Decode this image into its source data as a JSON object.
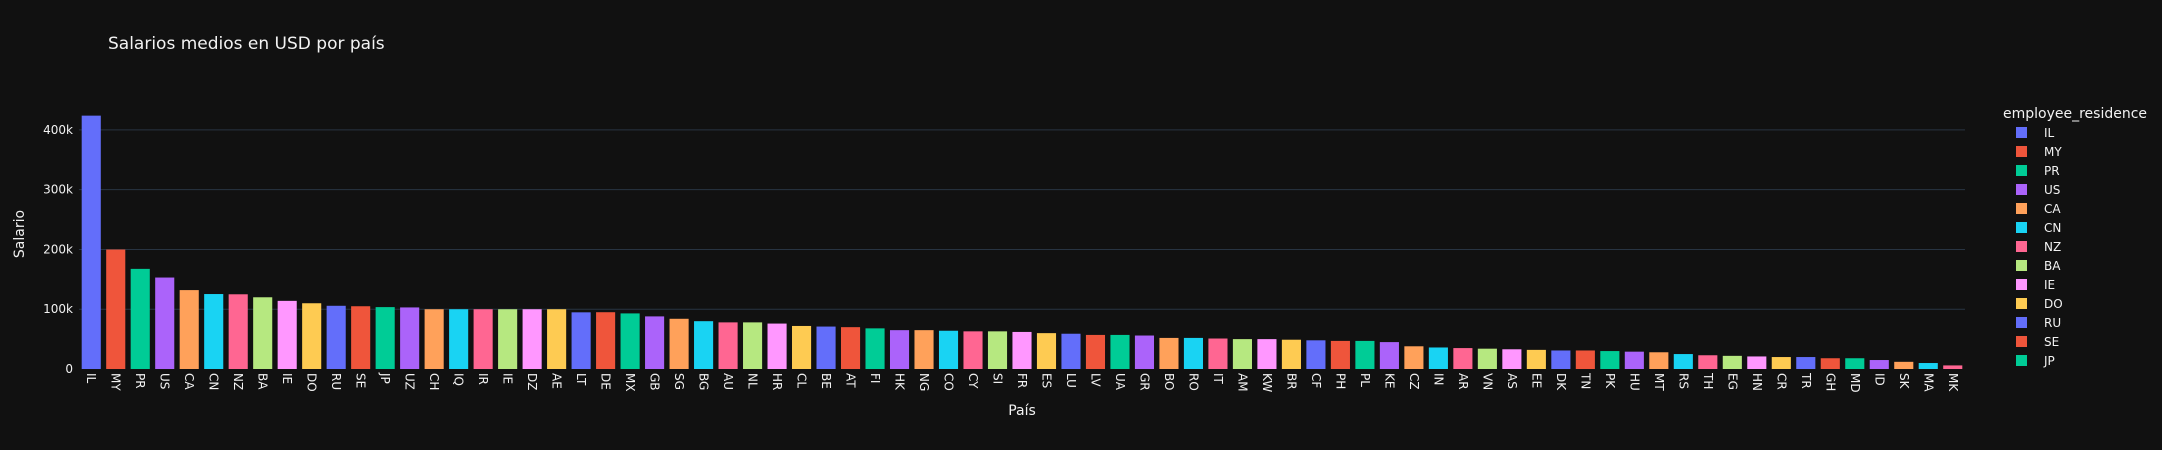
{
  "chart_data": {
    "type": "bar",
    "title": "Salarios medios en USD por país",
    "xlabel": "País",
    "ylabel": "Salario",
    "ylim": [
      0,
      450000
    ],
    "yticks": [
      0,
      100000,
      200000,
      300000,
      400000
    ],
    "ytick_labels": [
      "0",
      "100k",
      "200k",
      "300k",
      "400k"
    ],
    "grid": true,
    "legend_title": "employee_residence",
    "legend_position": "right",
    "palette": [
      "#636efa",
      "#EF553B",
      "#00cc96",
      "#ab63fa",
      "#FFA15A",
      "#19d3f3",
      "#FF6692",
      "#B6E880",
      "#FF97FF",
      "#FECB52"
    ],
    "categories": [
      "IL",
      "MY",
      "PR",
      "US",
      "CA",
      "CN",
      "NZ",
      "BA",
      "IE",
      "DO",
      "RU",
      "SE",
      "JP",
      "UZ",
      "CH",
      "IQ",
      "IR",
      "IE",
      "DZ",
      "AE",
      "LT",
      "DE",
      "MX",
      "GB",
      "SG",
      "BG",
      "AU",
      "NL",
      "HR",
      "CL",
      "BE",
      "AT",
      "FI",
      "HK",
      "NG",
      "CO",
      "CY",
      "SI",
      "FR",
      "ES",
      "LU",
      "LV",
      "UA",
      "GR",
      "BO",
      "RO",
      "IT",
      "AM",
      "KW",
      "BR",
      "CF",
      "PH",
      "PL",
      "KE",
      "CZ",
      "IN",
      "AR",
      "VN",
      "AS",
      "EE",
      "DK",
      "TN",
      "PK",
      "HU",
      "MT",
      "RS",
      "TH",
      "EG",
      "HN",
      "CR",
      "TR",
      "GH",
      "MD",
      "ID",
      "SK",
      "MA",
      "MK"
    ],
    "values": [
      423834,
      199882,
      167500,
      153000,
      132000,
      125404,
      125000,
      120000,
      114000,
      110000,
      105750,
      105000,
      103537,
      103000,
      100000,
      100000,
      100000,
      100000,
      100000,
      100000,
      94812,
      95000,
      93000,
      88000,
      84000,
      80000,
      78000,
      78000,
      76000,
      72000,
      71000,
      70000,
      68000,
      65000,
      65000,
      64000,
      63000,
      63000,
      62000,
      60000,
      59000,
      57000,
      57000,
      56000,
      52000,
      52000,
      51000,
      50000,
      50000,
      49000,
      48000,
      47000,
      47000,
      45000,
      38000,
      36000,
      35000,
      34000,
      33000,
      32000,
      31000,
      31000,
      30000,
      29000,
      28000,
      25000,
      23000,
      22000,
      21000,
      20000,
      20000,
      18000,
      18000,
      15000,
      12000,
      10000,
      6000
    ],
    "legend_entries": [
      "IL",
      "MY",
      "PR",
      "US",
      "CA",
      "CN",
      "NZ",
      "BA",
      "IE",
      "DO",
      "RU",
      "SE",
      "JP"
    ]
  }
}
